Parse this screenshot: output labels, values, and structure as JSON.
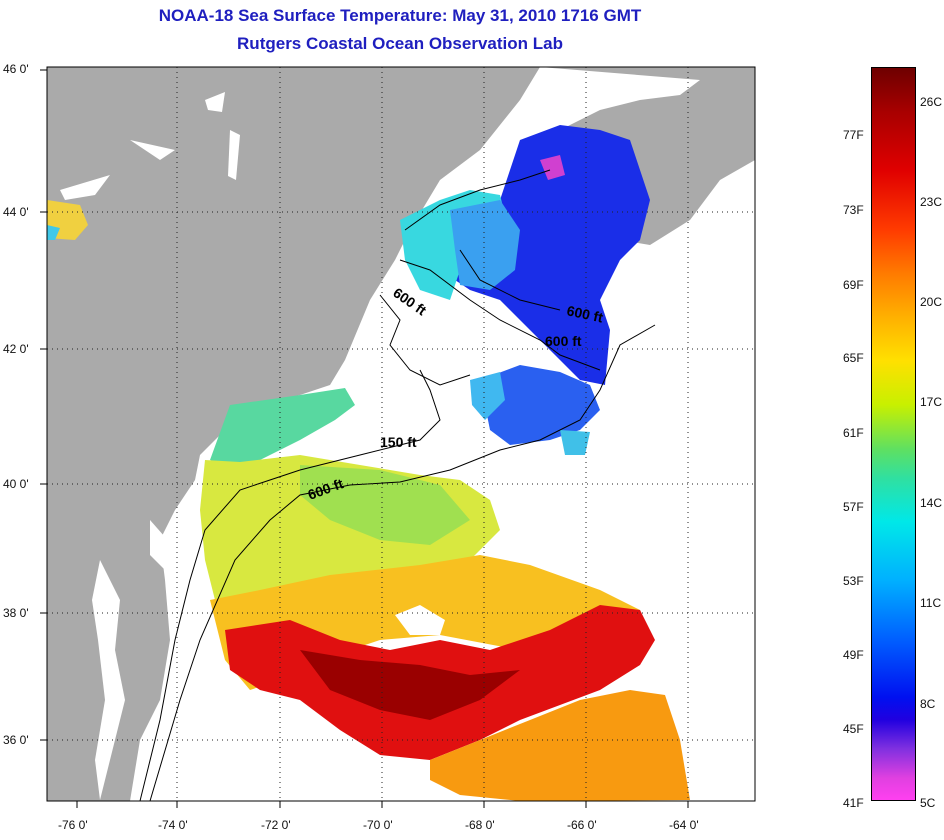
{
  "title": {
    "line1": "NOAA-18 Sea Surface Temperature:  May 31, 2010 1716 GMT",
    "line2": "Rutgers Coastal Ocean Observation Lab"
  },
  "axes": {
    "lat_labels": [
      "46 0'",
      "44 0'",
      "42 0'",
      "40 0'",
      "38 0'",
      "36 0'"
    ],
    "lon_labels": [
      "-76 0'",
      "-74 0'",
      "-72 0'",
      "-70 0'",
      "-68 0'",
      "-66 0'",
      "-64 0'"
    ]
  },
  "contours": [
    "600 ft",
    "600 ft",
    "600 ft",
    "150 ft",
    "600 ft"
  ],
  "colorbar": {
    "fahrenheit": [
      "77F",
      "73F",
      "69F",
      "65F",
      "61F",
      "57F",
      "53F",
      "49F",
      "45F",
      "41F"
    ],
    "celsius": [
      "26C",
      "23C",
      "20C",
      "17C",
      "14C",
      "11C",
      "8C",
      "5C"
    ]
  },
  "colors": {
    "title": "#1f1fbf",
    "land": "#aaaaaa",
    "ocean_nodata": "#ffffff"
  }
}
